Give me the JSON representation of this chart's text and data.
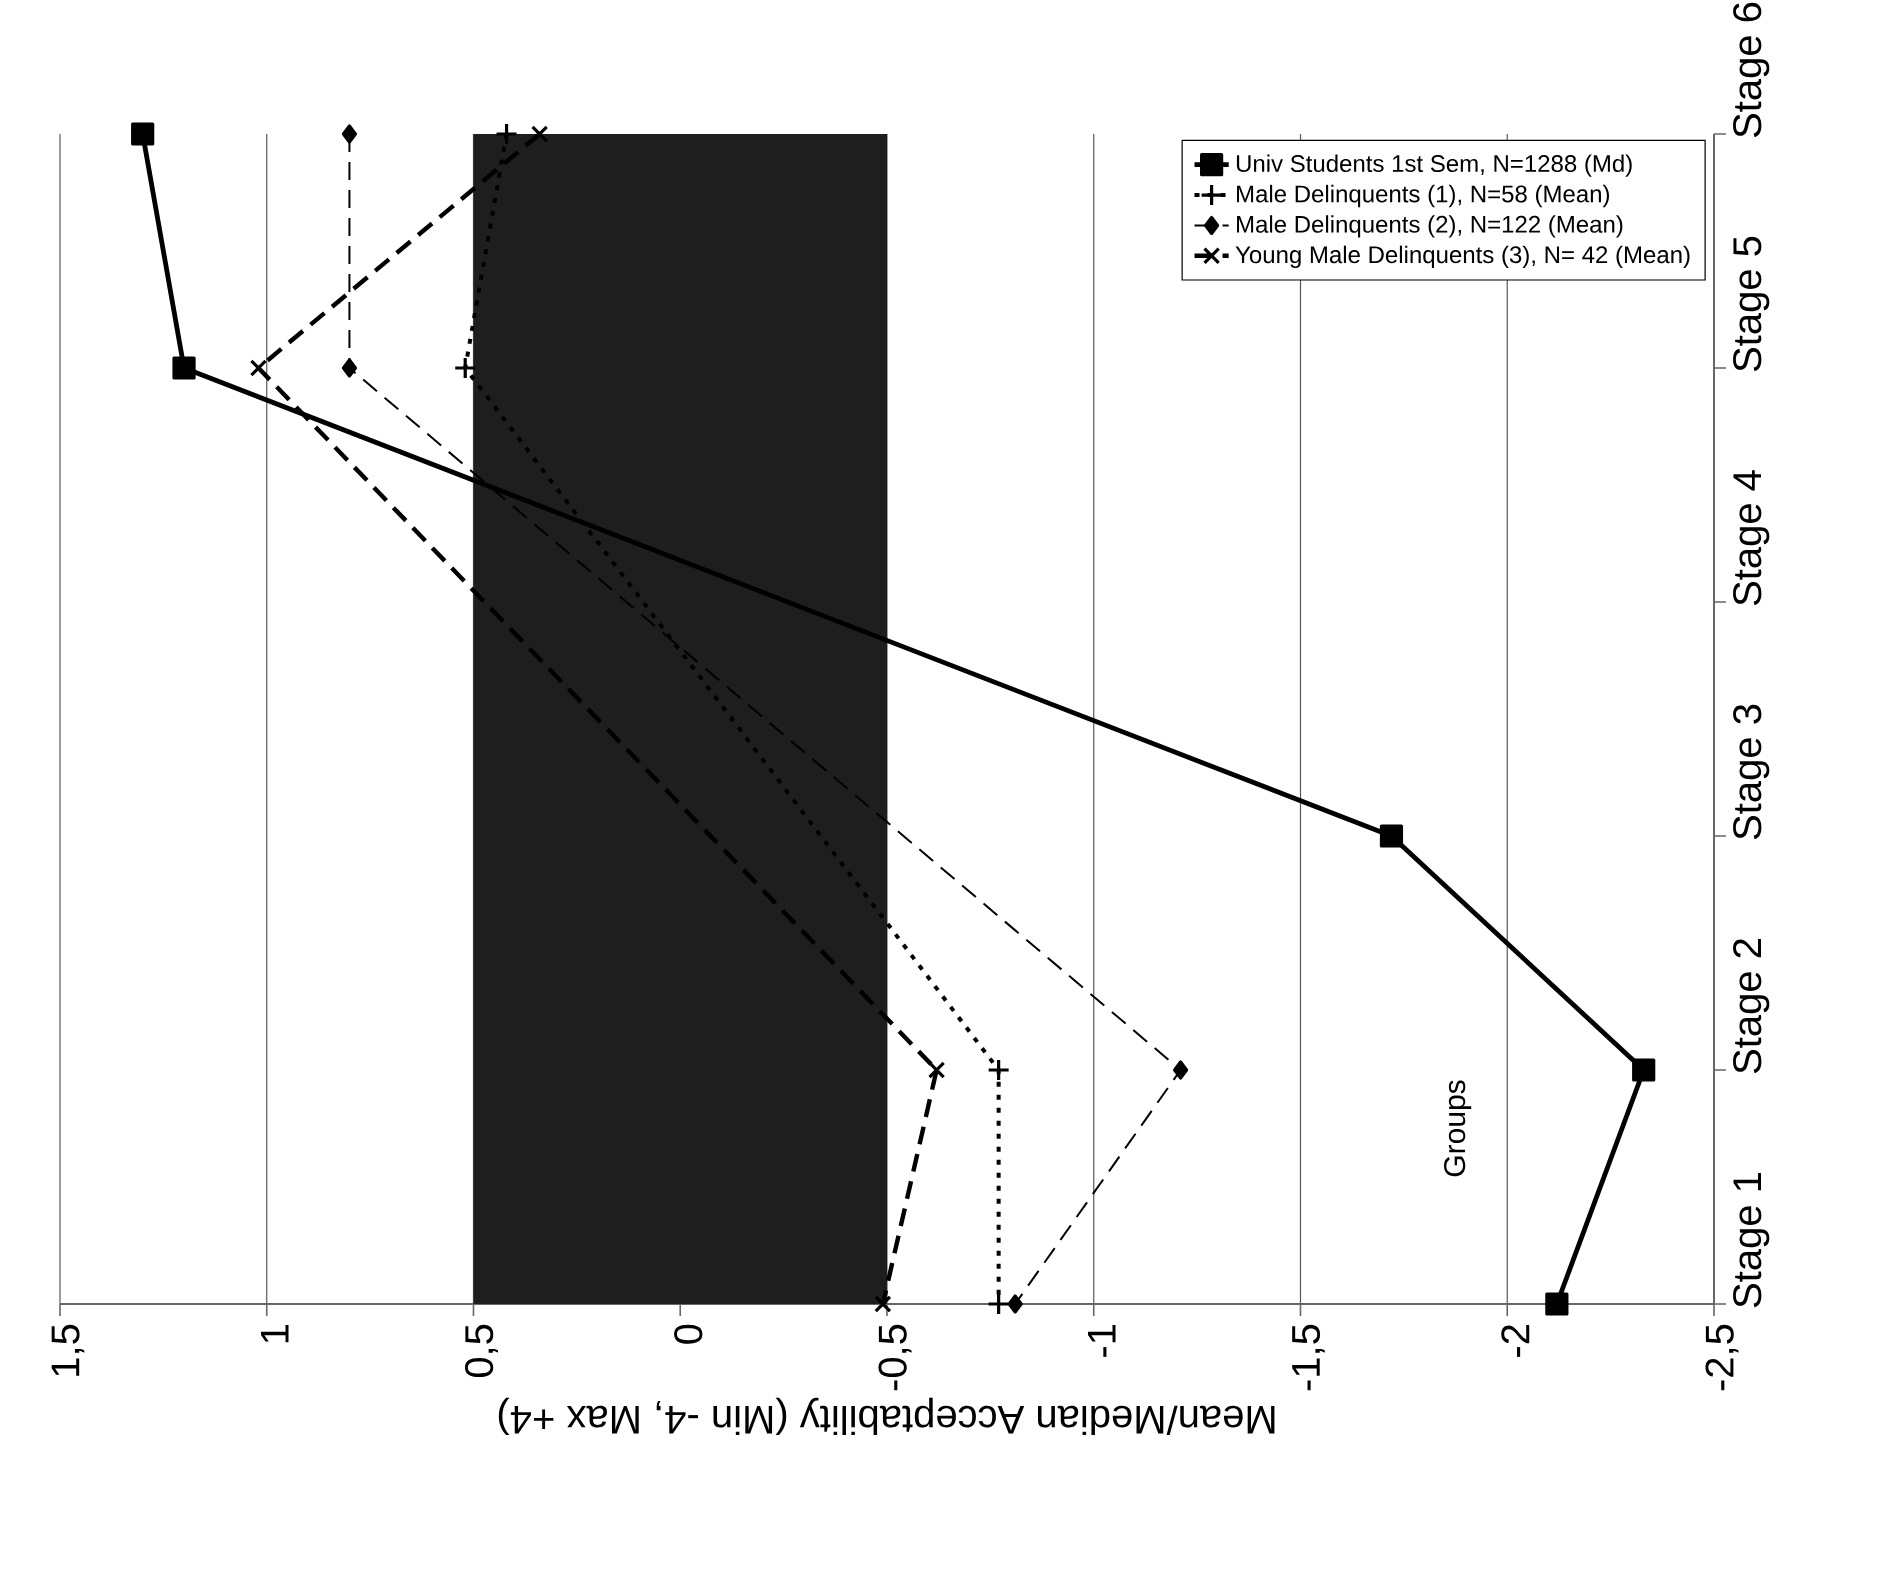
{
  "chart_data": {
    "type": "line",
    "orientation": "horizontal",
    "xlabel": "Mean/Median Acceptability (Min -4, Max +4)",
    "categories": [
      "Stage 6",
      "Stage 5",
      "Stage 4",
      "Stage 3",
      "Stage 2",
      "Stage 1"
    ],
    "xlim": [
      1.5,
      -2.5
    ],
    "xticks": [
      {
        "value": 1.5,
        "label": "1,5"
      },
      {
        "value": 1,
        "label": "1"
      },
      {
        "value": 0.5,
        "label": "0,5"
      },
      {
        "value": 0,
        "label": "0"
      },
      {
        "value": -0.5,
        "label": "-0,5"
      },
      {
        "value": -1,
        "label": "-1"
      },
      {
        "value": -1.5,
        "label": "-1,5"
      },
      {
        "value": -2,
        "label": "-2"
      },
      {
        "value": -2.5,
        "label": "-2,5"
      }
    ],
    "grid": "x",
    "legend": "top right",
    "series": [
      {
        "name": "Univ Students 1st Sem, N=1288 (Md)",
        "color": "#000000",
        "marker": "square",
        "line_style": "solid",
        "values": [
          1.3,
          1.2,
          null,
          -1.72,
          -2.33,
          -2.12
        ]
      },
      {
        "name": "Male Delinquents (1), N=58 (Mean)",
        "color": "#000000",
        "marker": "cross",
        "line_style": "dotted",
        "values": [
          0.42,
          0.52,
          null,
          null,
          -0.77,
          -0.77
        ]
      },
      {
        "name": "Male Delinquents (2), N=122 (Mean)",
        "color": "#000000",
        "marker": "diamond",
        "line_style": "dashed",
        "values": [
          0.8,
          0.8,
          null,
          null,
          -1.21,
          -0.81
        ]
      },
      {
        "name": "Young Male Delinquents (3), N= 42 (Mean)",
        "color": "#000000",
        "marker": "cross",
        "line_style": "dashed",
        "values": [
          0.34,
          1.02,
          null,
          null,
          -0.62,
          -0.49
        ]
      }
    ],
    "bands": [
      {
        "axis": "x",
        "from": -0.5,
        "to": 0.5,
        "color": "#1e1e1e"
      }
    ],
    "annotations": [
      "Groups"
    ]
  }
}
